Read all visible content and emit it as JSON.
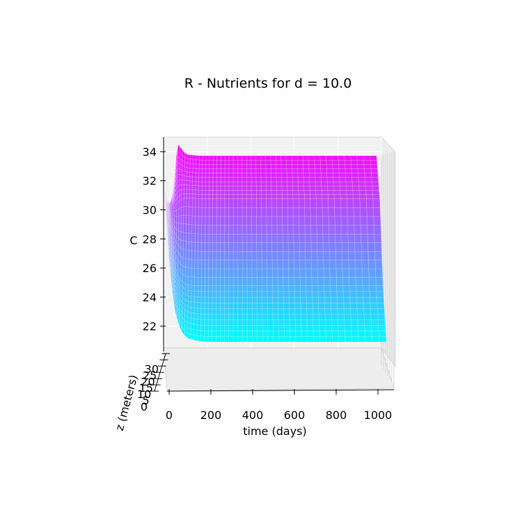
{
  "chart_data": {
    "type": "surface",
    "title": "R - Nutrients for d = 10.0",
    "xlabel": "time (days)",
    "ylabel": "z (meters)",
    "zlabel": "C",
    "x_ticks": [
      "0",
      "200",
      "400",
      "600",
      "800",
      "1000"
    ],
    "y_ticks": [
      "0",
      "5",
      "10",
      "15",
      "20",
      "25",
      "30"
    ],
    "z_ticks": [
      "22",
      "24",
      "26",
      "28",
      "30",
      "32",
      "34"
    ],
    "xlim": [
      0,
      1000
    ],
    "ylim": [
      0,
      30
    ],
    "zlim": [
      20.5,
      35
    ],
    "colormap": "cool",
    "colormap_low": "#00ffff",
    "colormap_high": "#ff00ff",
    "surface": {
      "time": [
        0,
        20,
        40,
        60,
        80,
        100,
        150,
        200,
        300,
        400,
        600,
        800,
        1000
      ],
      "depth": [
        0,
        10,
        20,
        30
      ],
      "C_at_depth": [
        {
          "z": 0,
          "C": [
            30.9,
            31.8,
            34.6,
            34.3,
            34.0,
            33.95,
            33.9,
            33.9,
            33.9,
            33.9,
            33.9,
            33.9,
            33.9
          ]
        },
        {
          "z": 10,
          "C": [
            30.8,
            30.3,
            30.6,
            30.9,
            31.0,
            31.0,
            30.95,
            30.95,
            30.95,
            30.95,
            30.95,
            30.95,
            30.95
          ]
        },
        {
          "z": 20,
          "C": [
            30.7,
            28.5,
            26.4,
            25.6,
            25.3,
            25.2,
            25.15,
            25.15,
            25.15,
            25.15,
            25.15,
            25.15,
            25.15
          ]
        },
        {
          "z": 30,
          "C": [
            30.6,
            26.0,
            23.4,
            22.2,
            21.6,
            21.3,
            21.1,
            21.05,
            21.05,
            21.05,
            21.05,
            21.05,
            21.05
          ]
        }
      ]
    },
    "grid": true
  }
}
